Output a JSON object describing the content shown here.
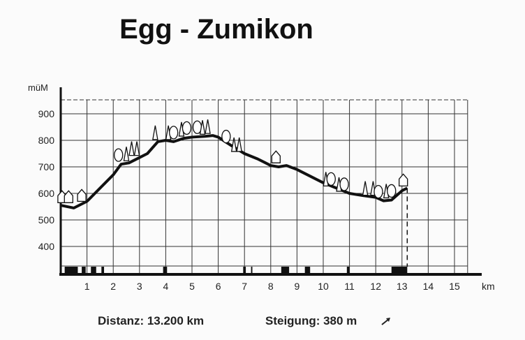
{
  "chart_data": {
    "type": "line",
    "title": "Egg - Zumikon",
    "xlabel": "km",
    "ylabel": "müM",
    "xlim": [
      0,
      15.5
    ],
    "ylim": [
      300,
      950
    ],
    "x_ticks": [
      "1",
      "2",
      "3",
      "4",
      "5",
      "6",
      "7",
      "8",
      "9",
      "10",
      "11",
      "12",
      "13",
      "14",
      "15"
    ],
    "y_ticks": [
      "400",
      "500",
      "600",
      "700",
      "800",
      "900"
    ],
    "grid": true,
    "series": [
      {
        "x": [
          0,
          0.5,
          1,
          1.5,
          2,
          2.3,
          2.6,
          3,
          3.3,
          3.7,
          4,
          4.3,
          4.7,
          5,
          5.5,
          5.8,
          6,
          6.5,
          7,
          7.5,
          8,
          8.3,
          8.6,
          9,
          9.5,
          10,
          10.5,
          11,
          11.5,
          12,
          12.3,
          12.6,
          13,
          13.2
        ],
        "y": [
          555,
          545,
          570,
          620,
          670,
          710,
          715,
          735,
          750,
          795,
          800,
          795,
          808,
          812,
          815,
          818,
          812,
          780,
          750,
          730,
          705,
          700,
          705,
          690,
          665,
          640,
          620,
          600,
          592,
          585,
          572,
          575,
          610,
          620
        ]
      }
    ],
    "end_marker_km": 13.2,
    "surface_dark_segments_km": [
      [
        0.15,
        0.65
      ],
      [
        0.8,
        0.95
      ],
      [
        1.15,
        1.35
      ],
      [
        1.55,
        1.65
      ],
      [
        3.9,
        4.05
      ],
      [
        6.95,
        7.05
      ],
      [
        7.25,
        7.3
      ],
      [
        8.4,
        8.7
      ],
      [
        9.3,
        9.5
      ],
      [
        10.9,
        11.0
      ],
      [
        12.6,
        13.2
      ]
    ],
    "distance": "Distanz: 13.200 km",
    "ascent": "Steigung: 380 m",
    "colors": {
      "ink": "#111111",
      "grid": "#333333"
    }
  }
}
